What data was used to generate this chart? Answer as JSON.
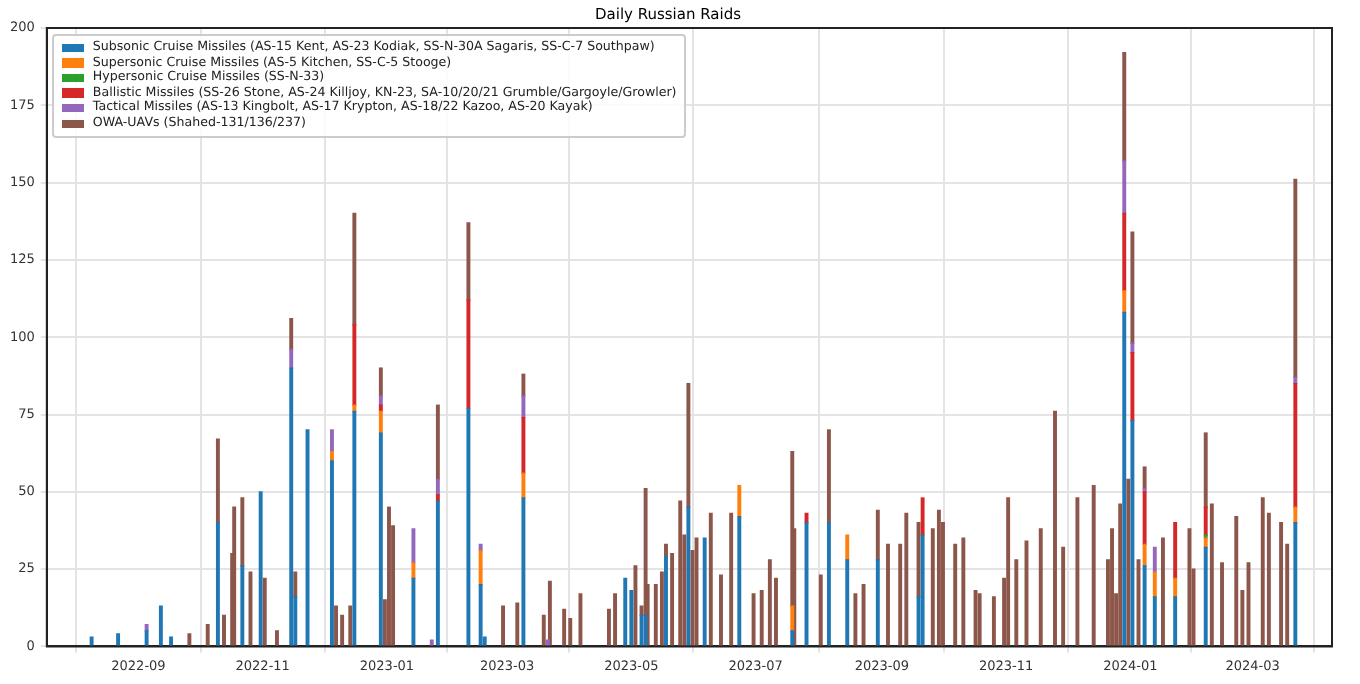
{
  "chart_data": {
    "type": "bar",
    "title": "Daily Russian Raids",
    "stacked": true,
    "grid": true,
    "legend": "top left",
    "x": [
      "2022-08-09",
      "2022-08-22",
      "2022-09-05",
      "2022-09-12",
      "2022-09-17",
      "2022-09-26",
      "2022-10-05",
      "2022-10-10",
      "2022-10-13",
      "2022-10-17",
      "2022-10-18",
      "2022-10-22",
      "2022-10-26",
      "2022-10-31",
      "2022-11-02",
      "2022-11-08",
      "2022-11-15",
      "2022-11-17",
      "2022-11-23",
      "2022-12-05",
      "2022-12-07",
      "2022-12-10",
      "2022-12-14",
      "2022-12-16",
      "2022-12-29",
      "2022-12-31",
      "2023-01-02",
      "2023-01-04",
      "2023-01-14",
      "2023-01-23",
      "2023-01-26",
      "2023-02-10",
      "2023-02-16",
      "2023-02-18",
      "2023-02-27",
      "2023-03-06",
      "2023-03-09",
      "2023-03-19",
      "2023-03-21",
      "2023-03-22",
      "2023-03-29",
      "2023-04-01",
      "2023-04-06",
      "2023-04-20",
      "2023-04-23",
      "2023-04-28",
      "2023-05-01",
      "2023-05-03",
      "2023-05-06",
      "2023-05-08",
      "2023-05-09",
      "2023-05-13",
      "2023-05-16",
      "2023-05-18",
      "2023-05-21",
      "2023-05-25",
      "2023-05-27",
      "2023-05-29",
      "2023-05-31",
      "2023-06-02",
      "2023-06-06",
      "2023-06-09",
      "2023-06-14",
      "2023-06-19",
      "2023-06-23",
      "2023-06-30",
      "2023-07-04",
      "2023-07-08",
      "2023-07-11",
      "2023-07-19",
      "2023-07-20",
      "2023-07-26",
      "2023-08-02",
      "2023-08-06",
      "2023-08-15",
      "2023-08-19",
      "2023-08-23",
      "2023-08-30",
      "2023-09-04",
      "2023-09-10",
      "2023-09-13",
      "2023-09-19",
      "2023-09-21",
      "2023-09-26",
      "2023-09-29",
      "2023-10-01",
      "2023-10-07",
      "2023-10-11",
      "2023-10-17",
      "2023-10-19",
      "2023-10-26",
      "2023-10-31",
      "2023-11-02",
      "2023-11-06",
      "2023-11-11",
      "2023-11-18",
      "2023-11-25",
      "2023-11-29",
      "2023-12-06",
      "2023-12-14",
      "2023-12-21",
      "2023-12-23",
      "2023-12-25",
      "2023-12-27",
      "2023-12-29",
      "2023-12-31",
      "2024-01-02",
      "2024-01-05",
      "2024-01-08",
      "2024-01-13",
      "2024-01-17",
      "2024-01-23",
      "2024-01-30",
      "2024-02-01",
      "2024-02-07",
      "2024-02-10",
      "2024-02-15",
      "2024-02-22",
      "2024-02-25",
      "2024-02-28",
      "2024-03-06",
      "2024-03-09",
      "2024-03-15",
      "2024-03-18",
      "2024-03-22"
    ],
    "series": [
      {
        "name": "Subsonic Cruise Missiles (AS-15 Kent, AS-23 Kodiak, SS-N-30A Sagaris, SS-C-7 Southpaw)",
        "color": "#1f77b4",
        "values": [
          3,
          4,
          5,
          13,
          3,
          null,
          null,
          40,
          null,
          null,
          null,
          26,
          null,
          50,
          null,
          null,
          90,
          16,
          70,
          60,
          null,
          null,
          null,
          76,
          69,
          null,
          null,
          null,
          22,
          null,
          47,
          77,
          20,
          3,
          null,
          null,
          48,
          null,
          null,
          null,
          null,
          null,
          null,
          null,
          null,
          22,
          18,
          null,
          10,
          10,
          null,
          null,
          null,
          29,
          null,
          null,
          null,
          45,
          null,
          null,
          35,
          null,
          null,
          null,
          42,
          null,
          null,
          null,
          null,
          5,
          null,
          40,
          null,
          40,
          28,
          null,
          null,
          28,
          null,
          null,
          null,
          16,
          36,
          null,
          null,
          null,
          null,
          null,
          null,
          null,
          null,
          null,
          null,
          null,
          null,
          null,
          null,
          null,
          null,
          null,
          null,
          null,
          null,
          null,
          108,
          null,
          73,
          null,
          26,
          16,
          null,
          16,
          null,
          null,
          32,
          null,
          null,
          null,
          null,
          null,
          null,
          null,
          null,
          null,
          40
        ]
      },
      {
        "name": "Supersonic Cruise Missiles (AS-5 Kitchen, SS-C-5 Stooge)",
        "color": "#ff7f0e",
        "values": [
          null,
          null,
          null,
          null,
          null,
          null,
          null,
          null,
          null,
          null,
          null,
          null,
          null,
          null,
          null,
          null,
          null,
          null,
          null,
          3,
          null,
          null,
          null,
          2,
          7,
          null,
          null,
          null,
          5,
          null,
          null,
          null,
          11,
          null,
          null,
          null,
          8,
          null,
          null,
          null,
          null,
          null,
          null,
          null,
          null,
          null,
          null,
          null,
          null,
          null,
          null,
          null,
          null,
          null,
          null,
          null,
          null,
          null,
          null,
          null,
          null,
          null,
          null,
          null,
          10,
          null,
          null,
          null,
          null,
          8,
          null,
          null,
          null,
          null,
          8,
          null,
          null,
          null,
          null,
          null,
          null,
          null,
          null,
          null,
          null,
          null,
          null,
          null,
          null,
          null,
          null,
          null,
          null,
          null,
          null,
          null,
          null,
          null,
          null,
          null,
          null,
          null,
          null,
          null,
          7,
          null,
          null,
          null,
          7,
          8,
          null,
          6,
          null,
          null,
          3,
          null,
          null,
          null,
          null,
          null,
          null,
          null,
          null,
          null,
          5
        ]
      },
      {
        "name": "Hypersonic Cruise Missiles (SS-N-33)",
        "color": "#2ca02c",
        "values": [
          null,
          null,
          null,
          null,
          null,
          null,
          null,
          null,
          null,
          null,
          null,
          null,
          null,
          null,
          null,
          null,
          null,
          null,
          null,
          null,
          null,
          null,
          null,
          null,
          null,
          null,
          null,
          null,
          null,
          null,
          null,
          null,
          null,
          null,
          null,
          null,
          null,
          null,
          null,
          null,
          null,
          null,
          null,
          null,
          null,
          null,
          null,
          null,
          null,
          null,
          null,
          null,
          null,
          null,
          null,
          null,
          null,
          null,
          null,
          null,
          null,
          null,
          null,
          null,
          null,
          null,
          null,
          null,
          null,
          null,
          null,
          null,
          null,
          null,
          null,
          null,
          null,
          null,
          null,
          null,
          null,
          null,
          null,
          null,
          null,
          null,
          null,
          null,
          null,
          null,
          null,
          null,
          null,
          null,
          null,
          null,
          null,
          null,
          null,
          null,
          null,
          null,
          null,
          null,
          null,
          null,
          null,
          null,
          null,
          null,
          null,
          null,
          null,
          null,
          1,
          null,
          null,
          null,
          null,
          null,
          null,
          null,
          null,
          null,
          null
        ]
      },
      {
        "name": "Ballistic Missiles (SS-26 Stone, AS-24 Killjoy, KN-23, SA-10/20/21 Grumble/Gargoyle/Growler)",
        "color": "#d62728",
        "values": [
          null,
          null,
          null,
          null,
          null,
          null,
          null,
          null,
          null,
          null,
          null,
          null,
          null,
          null,
          null,
          null,
          null,
          null,
          null,
          null,
          null,
          null,
          null,
          26,
          2,
          null,
          null,
          null,
          null,
          null,
          2,
          35,
          null,
          null,
          null,
          null,
          18,
          null,
          null,
          null,
          null,
          null,
          null,
          null,
          null,
          null,
          null,
          null,
          null,
          null,
          null,
          null,
          null,
          null,
          null,
          null,
          null,
          null,
          null,
          null,
          null,
          null,
          null,
          null,
          null,
          null,
          null,
          null,
          null,
          null,
          null,
          3,
          null,
          null,
          null,
          null,
          null,
          null,
          null,
          null,
          null,
          null,
          12,
          null,
          null,
          null,
          null,
          null,
          null,
          null,
          null,
          null,
          null,
          null,
          null,
          null,
          null,
          null,
          null,
          null,
          null,
          null,
          null,
          null,
          25,
          null,
          22,
          null,
          17,
          null,
          null,
          18,
          null,
          null,
          9,
          null,
          null,
          null,
          null,
          null,
          null,
          null,
          null,
          null,
          40
        ]
      },
      {
        "name": "Tactical Missiles (AS-13 Kingbolt, AS-17 Krypton, AS-18/22 Kazoo, AS-20 Kayak)",
        "color": "#9467bd",
        "values": [
          null,
          null,
          2,
          null,
          null,
          null,
          null,
          null,
          null,
          null,
          null,
          null,
          null,
          null,
          null,
          null,
          6,
          null,
          null,
          7,
          null,
          null,
          null,
          null,
          3,
          null,
          null,
          null,
          11,
          2,
          5,
          null,
          2,
          null,
          null,
          null,
          7,
          null,
          2,
          null,
          null,
          null,
          null,
          null,
          null,
          null,
          null,
          null,
          null,
          null,
          null,
          null,
          null,
          null,
          null,
          null,
          null,
          null,
          null,
          null,
          null,
          null,
          null,
          null,
          null,
          null,
          null,
          null,
          null,
          null,
          null,
          null,
          null,
          null,
          null,
          null,
          null,
          null,
          null,
          null,
          null,
          null,
          null,
          null,
          null,
          null,
          null,
          null,
          null,
          null,
          null,
          null,
          null,
          null,
          null,
          null,
          null,
          null,
          null,
          null,
          null,
          null,
          null,
          null,
          17,
          null,
          3,
          null,
          1,
          8,
          null,
          null,
          null,
          null,
          null,
          null,
          null,
          null,
          null,
          null,
          null,
          null,
          null,
          null,
          2
        ]
      },
      {
        "name": "OWA-UAVs (Shahed-131/136/237)",
        "color": "#8c564b",
        "values": [
          null,
          null,
          null,
          null,
          null,
          4,
          7,
          27,
          10,
          30,
          45,
          22,
          24,
          null,
          22,
          5,
          10,
          8,
          null,
          null,
          13,
          10,
          13,
          36,
          9,
          15,
          45,
          39,
          null,
          null,
          24,
          25,
          null,
          null,
          13,
          14,
          7,
          10,
          null,
          21,
          12,
          9,
          17,
          12,
          17,
          null,
          null,
          26,
          3,
          41,
          20,
          20,
          24,
          4,
          30,
          47,
          36,
          40,
          31,
          35,
          null,
          43,
          23,
          43,
          null,
          17,
          18,
          28,
          22,
          50,
          38,
          null,
          23,
          30,
          null,
          17,
          20,
          16,
          33,
          33,
          43,
          24,
          null,
          38,
          44,
          40,
          33,
          35,
          18,
          17,
          16,
          22,
          48,
          28,
          34,
          38,
          76,
          32,
          48,
          52,
          28,
          38,
          17,
          46,
          35,
          54,
          36,
          28,
          7,
          null,
          35,
          null,
          38,
          25,
          24,
          46,
          27,
          42,
          18,
          27,
          48,
          43,
          40,
          33,
          64
        ]
      }
    ],
    "xlim": [
      "2022-07-18",
      "2024-04-09"
    ],
    "xticks": [
      "2022-09",
      "2022-11",
      "2023-01",
      "2023-03",
      "2023-05",
      "2023-07",
      "2023-09",
      "2023-11",
      "2024-01",
      "2024-03"
    ],
    "ylim": [
      0,
      200
    ],
    "yticks": [
      0,
      25,
      50,
      75,
      100,
      125,
      150,
      175,
      200
    ]
  }
}
